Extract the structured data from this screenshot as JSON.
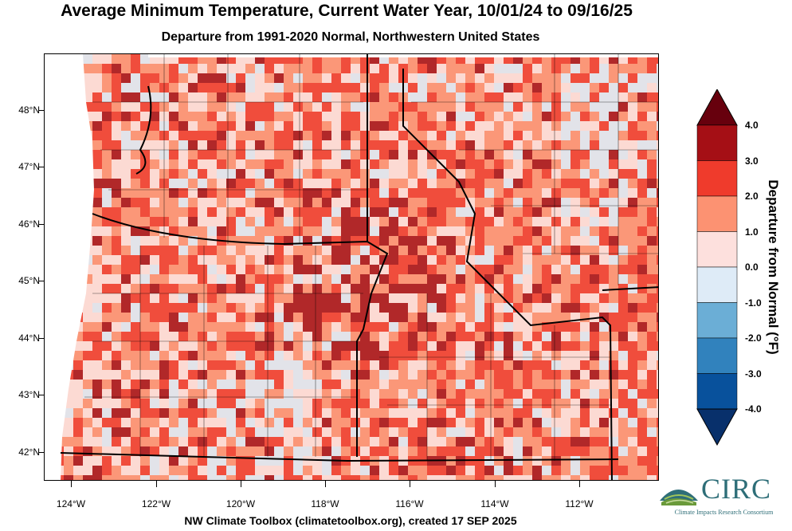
{
  "header": {
    "title": "Average Minimum Temperature, Current Water Year, 10/01/24 to 09/16/25",
    "subtitle": "Departure from 1991-2020 Normal, Northwestern United States"
  },
  "map": {
    "latitude_labels": [
      "48°N",
      "47°N",
      "46°N",
      "45°N",
      "44°N",
      "43°N",
      "42°N"
    ],
    "longitude_labels": [
      "124°W",
      "122°W",
      "120°W",
      "118°W",
      "116°W",
      "114°W",
      "112°W"
    ],
    "dominant_color": "#f6b39a"
  },
  "colorbar": {
    "title": "Departure from Normal (°F)",
    "labels": [
      "4.0",
      "3.0",
      "2.0",
      "1.0",
      "0.0",
      "-1.0",
      "-2.0",
      "-3.0",
      "-4.0"
    ],
    "colors": [
      "#67000d",
      "#a50f15",
      "#ef3b2c",
      "#fc9272",
      "#fde0dd",
      "#deebf7",
      "#6baed6",
      "#3182bd",
      "#08519c",
      "#08306b"
    ]
  },
  "footer": {
    "credit": "NW Climate Toolbox (climatetoolbox.org), created 17 SEP 2025"
  },
  "logo": {
    "name": "CIRC",
    "subtitle": "Climate Impacts Research Consortium"
  }
}
